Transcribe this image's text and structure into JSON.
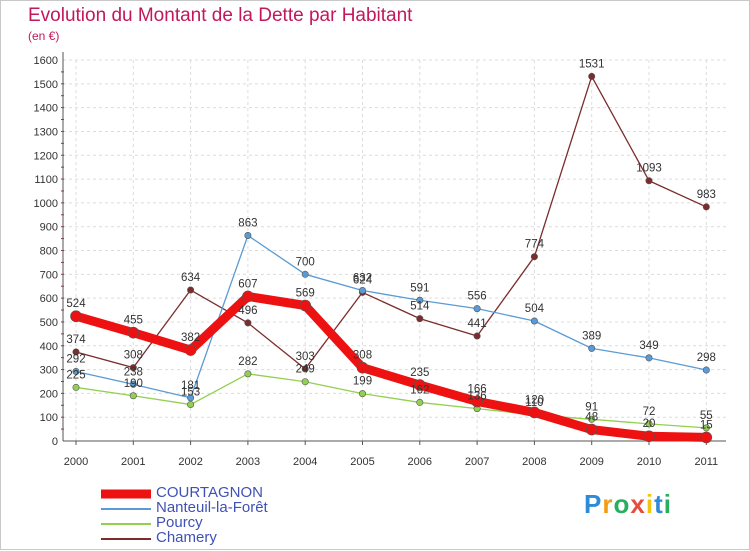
{
  "chart_data": {
    "type": "line",
    "title": "Evolution du Montant de la Dette par Habitant",
    "subtitle": "(en €)",
    "x": [
      "2000",
      "2001",
      "2002",
      "2003",
      "2004",
      "2005",
      "2006",
      "2007",
      "2008",
      "2009",
      "2010",
      "2011"
    ],
    "yticks": [
      0,
      100,
      200,
      300,
      400,
      500,
      600,
      700,
      800,
      900,
      1000,
      1100,
      1200,
      1300,
      1400,
      1500,
      1600
    ],
    "ylim": [
      0,
      1600
    ],
    "grid": true,
    "legend_position": "bottom-left",
    "series": [
      {
        "name": "COURTAGNON",
        "color": "#ee1111",
        "values": [
          524,
          455,
          382,
          607,
          569,
          308,
          235,
          166,
          120,
          48,
          20,
          15
        ]
      },
      {
        "name": "Nanteuil-la-Forêt",
        "color": "#5b9bd5",
        "values": [
          292,
          238,
          181,
          863,
          700,
          632,
          591,
          556,
          504,
          389,
          349,
          298
        ]
      },
      {
        "name": "Pourcy",
        "color": "#92d050",
        "values": [
          225,
          190,
          153,
          282,
          249,
          199,
          162,
          136,
          110,
          91,
          72,
          55
        ]
      },
      {
        "name": "Chamery",
        "color": "#7b2c2c",
        "values": [
          374,
          308,
          634,
          496,
          303,
          624,
          514,
          441,
          774,
          1531,
          1093,
          983
        ]
      }
    ]
  },
  "brand": {
    "text": "Proxiti",
    "letters": [
      "P",
      "r",
      "o",
      "x",
      "i",
      "t",
      "i"
    ],
    "colors": [
      "#2e8bd8",
      "#f39c12",
      "#27ae60",
      "#e74c3c",
      "#f1c40f",
      "#2e8bd8",
      "#27ae60"
    ]
  }
}
